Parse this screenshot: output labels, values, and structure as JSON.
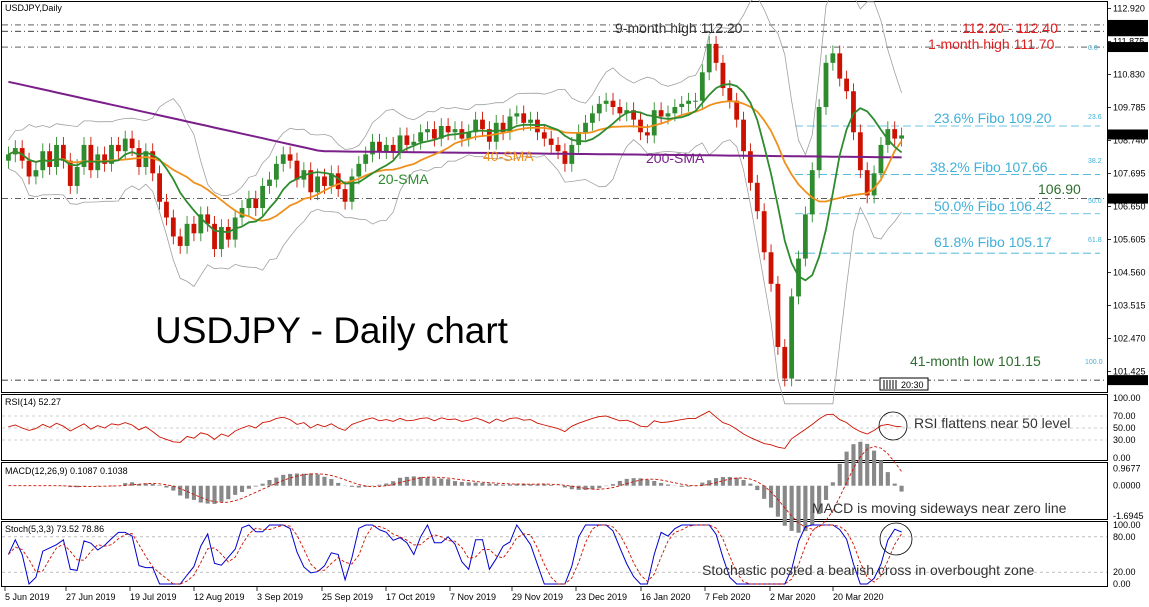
{
  "header": {
    "symbol": "USDJPY,Daily"
  },
  "chart_data": {
    "type": "candlestick",
    "title": "USDJPY - Daily chart",
    "x_tick_labels": [
      "5 Jun 2019",
      "27 Jun 2019",
      "19 Jul 2019",
      "12 Aug 2019",
      "3 Sep 2019",
      "25 Sep 2019",
      "17 Oct 2019",
      "7 Nov 2019",
      "29 Nov 2019",
      "23 Dec 2019",
      "16 Jan 2020",
      "7 Feb 2020",
      "2 Mar 2020",
      "20 Mar 2020"
    ],
    "price_axis": {
      "ylim": [
        100.9,
        113.0
      ],
      "ticks": [
        "112.920",
        "111.875",
        "110.830",
        "109.785",
        "108.740",
        "107.695",
        "106.650",
        "105.605",
        "104.560",
        "103.515",
        "102.470",
        "101.425"
      ],
      "markers": [
        {
          "label": "112.400",
          "value": 112.4,
          "bg": "#000000"
        },
        {
          "label": "112.200",
          "value": 112.2,
          "bg": "#000000"
        },
        {
          "label": "111.700",
          "value": 111.7,
          "bg": "#000000"
        },
        {
          "label": "108.930",
          "value": 108.93,
          "bg": "#000000"
        },
        {
          "label": "106.900",
          "value": 106.9,
          "bg": "#000000"
        },
        {
          "label": "101.150",
          "value": 101.15,
          "bg": "#000000"
        }
      ],
      "time_box": "20:30"
    },
    "series_names": [
      "20-SMA",
      "40-SMA",
      "200-SMA"
    ],
    "colors": {
      "sma20": "#2e8b2e",
      "sma40": "#f0901c",
      "sma200": "#7a1f8a",
      "bullish": "#2e8b2e",
      "bearish": "#cc1100",
      "bands": "#a0a0a0",
      "fibo": "#3fb0d8",
      "red_label": "#e02020",
      "rsi": "#cc1100",
      "stoch_main": "#0000cc",
      "stoch_signal": "#cc1100"
    },
    "annotations": {
      "nine_month_high": "9-month high 112.20",
      "range_label": "112.20 - 112.40",
      "one_month_high": "1-month high 111.70",
      "fibo_236": "23.6% Fibo 109.20",
      "fibo_382": "38.2% Fibo 107.66",
      "fibo_500": "50.0% Fibo 106.42",
      "fibo_618": "61.8% Fibo 105.17",
      "level_1069": "106.90",
      "low_41m": "41-month low 101.15",
      "sma20_label": "20-SMA",
      "sma40_label": "40-SMA",
      "sma200_label": "200-SMA",
      "fibo_small": [
        "0.0",
        "23.6",
        "38.2",
        "50.0",
        "61.8",
        "100.0"
      ]
    },
    "fibo_levels": [
      {
        "pct": "0.0",
        "value": 111.7
      },
      {
        "pct": "23.6",
        "value": 109.2
      },
      {
        "pct": "38.2",
        "value": 107.66
      },
      {
        "pct": "50.0",
        "value": 106.42
      },
      {
        "pct": "61.8",
        "value": 105.17
      },
      {
        "pct": "100.0",
        "value": 101.15
      }
    ],
    "horizontal_levels": [
      112.4,
      112.2,
      111.7,
      106.9,
      101.15
    ],
    "price_path": [
      108.3,
      108.5,
      108.1,
      107.6,
      107.8,
      108.4,
      107.9,
      108.6,
      108.1,
      107.3,
      107.9,
      108.6,
      107.8,
      108.3,
      108.0,
      108.6,
      108.4,
      108.8,
      108.5,
      107.9,
      108.4,
      107.7,
      106.8,
      106.3,
      105.7,
      105.4,
      106.1,
      105.8,
      106.4,
      106.1,
      105.3,
      106.0,
      105.6,
      106.3,
      106.6,
      106.9,
      106.6,
      107.3,
      107.5,
      108.0,
      108.3,
      108.1,
      107.5,
      107.8,
      107.1,
      107.6,
      107.3,
      107.7,
      107.2,
      106.8,
      107.6,
      108.0,
      108.3,
      108.7,
      108.4,
      108.6,
      108.4,
      108.9,
      108.6,
      108.7,
      109.0,
      109.1,
      108.8,
      109.2,
      109.0,
      109.1,
      108.8,
      109.0,
      109.4,
      109.1,
      108.7,
      109.3,
      109.0,
      109.5,
      109.6,
      109.3,
      109.4,
      109.0,
      108.8,
      108.6,
      108.4,
      108.0,
      108.6,
      109.0,
      109.3,
      109.6,
      109.9,
      110.0,
      109.8,
      109.6,
      109.7,
      109.4,
      109.0,
      108.9,
      109.7,
      109.5,
      109.6,
      109.8,
      109.9,
      110.0,
      110.0,
      110.9,
      111.8,
      111.2,
      110.4,
      110.0,
      109.4,
      108.4,
      107.4,
      106.5,
      105.2,
      104.2,
      102.2,
      101.2,
      103.8,
      105.0,
      106.4,
      107.8,
      109.8,
      111.2,
      111.5,
      110.7,
      110.3,
      109.0,
      107.8,
      107.0,
      107.7,
      108.6,
      109.1,
      108.8,
      108.9
    ]
  },
  "rsi_panel": {
    "title": "RSI(14) 52.27",
    "ticks": [
      "100.00",
      "70.00",
      "50.00",
      "30.00",
      "0.00"
    ],
    "note": "RSI flattens near 50 level",
    "values": [
      52,
      55,
      50,
      46,
      49,
      56,
      51,
      58,
      53,
      45,
      51,
      57,
      48,
      54,
      50,
      57,
      55,
      59,
      55,
      47,
      52,
      44,
      35,
      31,
      27,
      26,
      36,
      33,
      42,
      39,
      31,
      40,
      36,
      45,
      50,
      54,
      50,
      59,
      61,
      66,
      68,
      64,
      56,
      59,
      50,
      56,
      52,
      57,
      50,
      46,
      56,
      60,
      64,
      67,
      62,
      64,
      61,
      66,
      62,
      63,
      66,
      67,
      62,
      67,
      64,
      65,
      61,
      63,
      67,
      63,
      58,
      65,
      61,
      66,
      67,
      63,
      64,
      58,
      55,
      52,
      49,
      44,
      53,
      58,
      62,
      66,
      69,
      70,
      66,
      62,
      63,
      59,
      53,
      52,
      62,
      59,
      60,
      62,
      64,
      66,
      66,
      72,
      78,
      68,
      59,
      55,
      48,
      40,
      34,
      29,
      24,
      22,
      18,
      16,
      32,
      40,
      48,
      56,
      65,
      72,
      73,
      64,
      59,
      50,
      44,
      40,
      46,
      54,
      56,
      53,
      52
    ]
  },
  "macd_panel": {
    "title": "MACD(12,26,9) 0.1087 0.1038",
    "ticks": [
      "0.9677",
      "0.0000",
      "-1.6945"
    ],
    "note": "MACD is moving sideways near zero line",
    "ylim": [
      -1.8,
      1.1
    ]
  },
  "stoch_panel": {
    "title": "Stoch(5,3,3) 73.52 78.86",
    "ticks": [
      "100.00",
      "80.00",
      "20.00",
      "0.00"
    ],
    "note": "Stochastic posted a bearish cross in overbought zone"
  }
}
